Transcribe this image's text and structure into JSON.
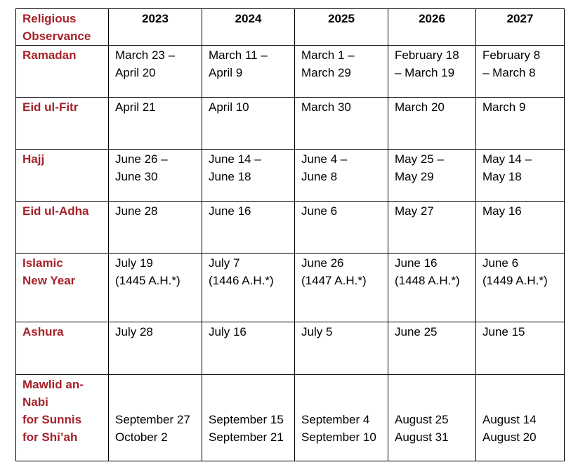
{
  "header": {
    "label": "Religious\nObservance",
    "years": [
      "2023",
      "2024",
      "2025",
      "2026",
      "2027"
    ]
  },
  "rows": [
    {
      "label": "Ramadan",
      "values": [
        "March 23 –\nApril 20",
        "March 11 –\nApril 9",
        "March 1 –\nMarch 29",
        "February 18\n– March 19",
        "February 8\n– March 8"
      ]
    },
    {
      "label": "Eid ul-Fitr",
      "values": [
        "April 21",
        "April 10",
        "March 30",
        "March 20",
        "March 9"
      ]
    },
    {
      "label": "Hajj",
      "values": [
        "June 26 –\nJune 30",
        "June 14 –\nJune 18",
        "June 4 –\nJune 8",
        "May 25 –\nMay 29",
        "May 14 –\nMay 18"
      ]
    },
    {
      "label": "Eid ul-Adha",
      "values": [
        "June 28",
        "June 16",
        "June 6",
        "May 27",
        "May 16"
      ]
    },
    {
      "label": "Islamic\nNew Year",
      "values": [
        "July 19\n(1445 A.H.*)",
        "July 7\n(1446 A.H.*)",
        "June 26\n(1447 A.H.*)",
        "June 16\n(1448 A.H.*)",
        "June 6\n(1449 A.H.*)"
      ]
    },
    {
      "label": "Ashura",
      "values": [
        "July 28",
        "July 16",
        "July 5",
        "June 25",
        "June 15"
      ]
    },
    {
      "label": "Mawlid an-\nNabi\nfor Sunnis\nfor Shi’ah",
      "values": [
        "September 27\nOctober 2",
        "September 15\nSeptember 21",
        "September 4\nSeptember 10",
        "August 25\nAugust 31",
        "August 14\nAugust 20"
      ]
    }
  ],
  "colors": {
    "label": "#a5222a",
    "border": "#000000"
  }
}
